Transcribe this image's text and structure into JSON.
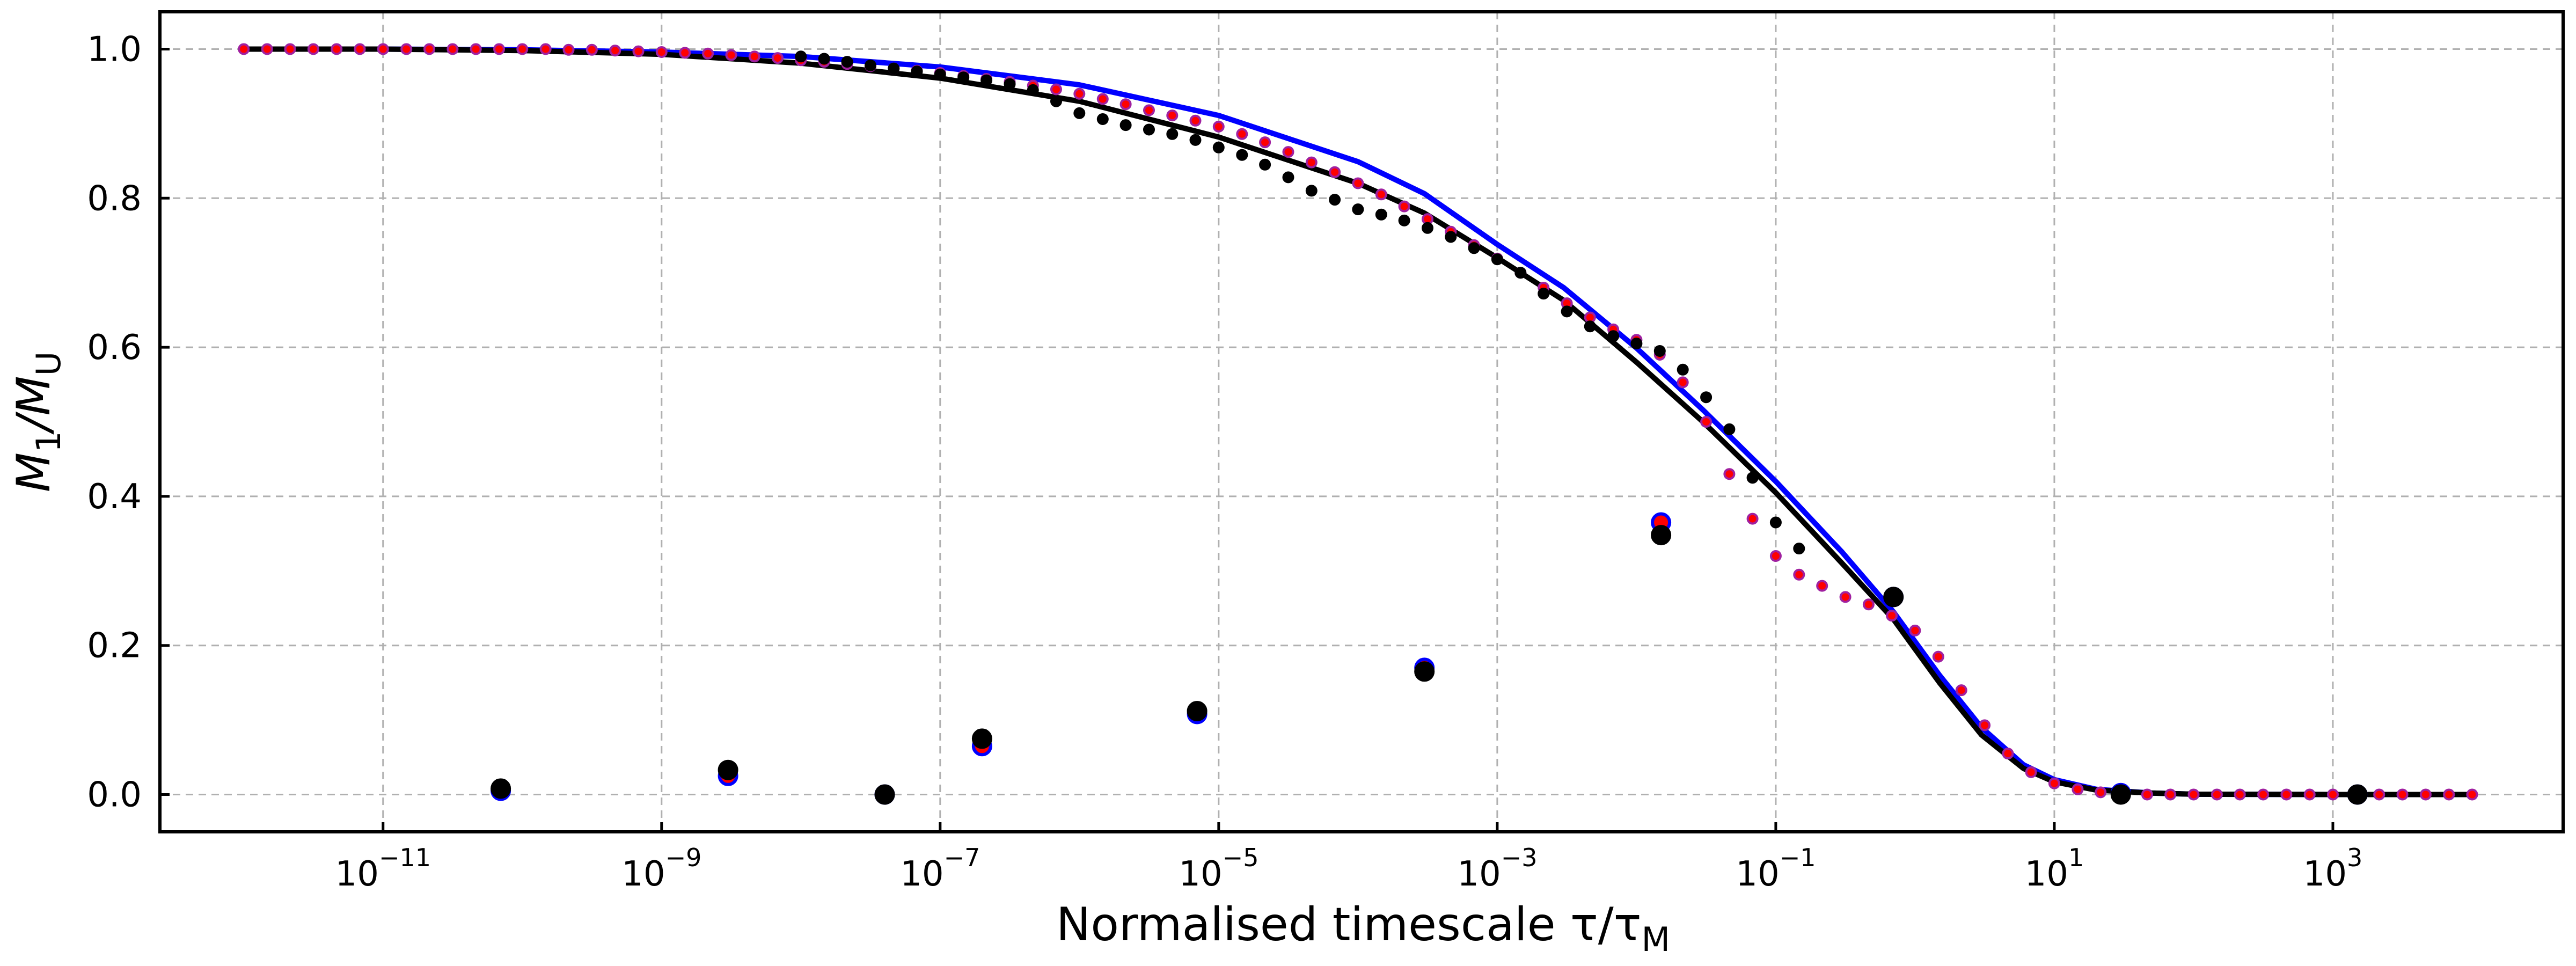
{
  "chart_data": {
    "type": "scatter",
    "title": "",
    "xlabel": "Normalised timescale τ/τ_M",
    "ylabel": "M_1/M_U",
    "x_scale": "log",
    "xlim": [
      2.5e-13,
      45000.0
    ],
    "ylim": [
      -0.05,
      1.05
    ],
    "grid": true,
    "x_ticks": [
      {
        "value": 1e-11,
        "base": "10",
        "exp": "−11"
      },
      {
        "value": 1e-09,
        "base": "10",
        "exp": "−9"
      },
      {
        "value": 1e-07,
        "base": "10",
        "exp": "−7"
      },
      {
        "value": 1e-05,
        "base": "10",
        "exp": "−5"
      },
      {
        "value": 0.001,
        "base": "10",
        "exp": "−3"
      },
      {
        "value": 0.1,
        "base": "10",
        "exp": "−1"
      },
      {
        "value": 10.0,
        "base": "10",
        "exp": "1"
      },
      {
        "value": 1000.0,
        "base": "10",
        "exp": "3"
      }
    ],
    "y_ticks": [
      {
        "value": 0.0,
        "label": "0.0"
      },
      {
        "value": 0.2,
        "label": "0.2"
      },
      {
        "value": 0.4,
        "label": "0.4"
      },
      {
        "value": 0.6,
        "label": "0.6"
      },
      {
        "value": 0.8,
        "label": "0.8"
      },
      {
        "value": 1.0,
        "label": "1.0"
      }
    ],
    "lines": [
      {
        "color": "#0000ff",
        "x": [
          1e-12,
          1e-11,
          1e-10,
          1e-09,
          1e-08,
          1e-07,
          1e-06,
          1e-05,
          0.0001,
          0.0003,
          0.001,
          0.003,
          0.01,
          0.03,
          0.1,
          0.3,
          0.7,
          1.5,
          3,
          6,
          10,
          20,
          50,
          100,
          1000,
          10000.0
        ],
        "y": [
          1.0,
          1.0,
          0.999,
          0.996,
          0.99,
          0.976,
          0.952,
          0.911,
          0.849,
          0.806,
          0.738,
          0.68,
          0.599,
          0.516,
          0.42,
          0.325,
          0.245,
          0.16,
          0.09,
          0.04,
          0.02,
          0.007,
          0.002,
          0.0005,
          0.0,
          0.0
        ]
      },
      {
        "color": "#000000",
        "x": [
          1e-12,
          1e-11,
          1e-10,
          1e-09,
          1e-08,
          1e-07,
          1e-06,
          1e-05,
          0.0001,
          0.0003,
          0.001,
          0.003,
          0.01,
          0.03,
          0.1,
          0.3,
          0.7,
          1.5,
          3,
          6,
          10,
          20,
          50,
          100,
          1000,
          10000.0
        ],
        "y": [
          1.0,
          1.0,
          0.998,
          0.993,
          0.981,
          0.961,
          0.93,
          0.882,
          0.82,
          0.78,
          0.72,
          0.663,
          0.58,
          0.5,
          0.405,
          0.31,
          0.235,
          0.15,
          0.08,
          0.035,
          0.017,
          0.006,
          0.002,
          0.0005,
          0.0,
          0.0
        ]
      }
    ],
    "series": [
      {
        "marker": "small",
        "fill": "#ff0000",
        "stroke": "#a020a0",
        "x": [
          1e-12,
          1.47e-12,
          2.15e-12,
          3.16e-12,
          4.64e-12,
          6.81e-12,
          1e-11,
          1.47e-11,
          2.15e-11,
          3.16e-11,
          4.64e-11,
          6.81e-11,
          1e-10,
          1.47e-10,
          2.15e-10,
          3.16e-10,
          4.64e-10,
          6.81e-10,
          1e-09,
          1.47e-09,
          2.15e-09,
          3.16e-09,
          4.64e-09,
          6.81e-09,
          1e-08,
          1.47e-08,
          2.15e-08,
          3.16e-08,
          4.64e-08,
          6.81e-08,
          1e-07,
          1.47e-07,
          2.15e-07,
          3.16e-07,
          4.64e-07,
          6.81e-07,
          1e-06,
          1.47e-06,
          2.15e-06,
          3.16e-06,
          4.64e-06,
          6.81e-06,
          1e-05,
          1.47e-05,
          2.15e-05,
          3.16e-05,
          4.64e-05,
          6.81e-05,
          0.0001,
          0.000147,
          0.000215,
          0.000316,
          0.000464,
          0.000681,
          0.001,
          0.00147,
          0.00215,
          0.00316,
          0.00464,
          0.00681,
          0.01,
          0.0147,
          0.0215,
          0.0316,
          0.0464,
          0.0681,
          0.1,
          0.147,
          0.215,
          0.316,
          0.464,
          0.681,
          1.0,
          1.47,
          2.15,
          3.16,
          4.64,
          6.81,
          10,
          14.7,
          21.5,
          31.6,
          46.4,
          68.1,
          100,
          147,
          215,
          316,
          464,
          681,
          1000,
          1470,
          2150,
          3160,
          4640,
          6810,
          10000
        ],
        "y": [
          1.0,
          1.0,
          1.0,
          1.0,
          1.0,
          1.0,
          1.0,
          1.0,
          1.0,
          1.0,
          1.0,
          1.0,
          1.0,
          1.0,
          0.999,
          0.999,
          0.998,
          0.997,
          0.996,
          0.995,
          0.994,
          0.992,
          0.99,
          0.988,
          0.985,
          0.983,
          0.98,
          0.977,
          0.974,
          0.971,
          0.968,
          0.964,
          0.96,
          0.956,
          0.951,
          0.946,
          0.94,
          0.933,
          0.926,
          0.918,
          0.911,
          0.904,
          0.896,
          0.886,
          0.875,
          0.862,
          0.848,
          0.835,
          0.82,
          0.805,
          0.789,
          0.772,
          0.755,
          0.737,
          0.719,
          0.7,
          0.68,
          0.659,
          0.64,
          0.624,
          0.61,
          0.59,
          0.553,
          0.5,
          0.43,
          0.37,
          0.32,
          0.295,
          0.28,
          0.265,
          0.255,
          0.24,
          0.22,
          0.185,
          0.14,
          0.093,
          0.055,
          0.03,
          0.015,
          0.007,
          0.003,
          0.001,
          0.0,
          0.0,
          0.0,
          0.0,
          0.0,
          0.0,
          0.0,
          0.0,
          0.0,
          0.0,
          0.0,
          0.0,
          0.0,
          0.0,
          0.0
        ]
      },
      {
        "marker": "small",
        "fill": "#000000",
        "stroke": "#000000",
        "x": [
          1e-08,
          1.47e-08,
          2.15e-08,
          3.16e-08,
          4.64e-08,
          6.81e-08,
          1e-07,
          1.47e-07,
          2.15e-07,
          3.16e-07,
          4.64e-07,
          6.81e-07,
          1e-06,
          1.47e-06,
          2.15e-06,
          3.16e-06,
          4.64e-06,
          6.81e-06,
          1e-05,
          1.47e-05,
          2.15e-05,
          3.16e-05,
          4.64e-05,
          6.81e-05,
          0.0001,
          0.000147,
          0.000215,
          0.000316,
          0.000464,
          0.000681,
          0.001,
          0.00147,
          0.00215,
          0.00316,
          0.00464,
          0.00681,
          0.01,
          0.0147,
          0.0215,
          0.0316,
          0.0464,
          0.0681,
          0.1,
          0.147
        ],
        "y": [
          0.99,
          0.987,
          0.983,
          0.978,
          0.974,
          0.97,
          0.966,
          0.962,
          0.958,
          0.953,
          0.945,
          0.93,
          0.914,
          0.906,
          0.898,
          0.892,
          0.886,
          0.878,
          0.868,
          0.858,
          0.845,
          0.828,
          0.81,
          0.798,
          0.785,
          0.778,
          0.77,
          0.76,
          0.748,
          0.733,
          0.718,
          0.7,
          0.672,
          0.648,
          0.628,
          0.615,
          0.605,
          0.595,
          0.57,
          0.533,
          0.49,
          0.425,
          0.365,
          0.33
        ]
      },
      {
        "marker": "large",
        "fill": "#ff0000",
        "stroke": "#0000ff",
        "x": [
          7e-11,
          3e-09,
          4e-08,
          2e-07,
          7e-06,
          0.0003,
          0.015,
          0.7,
          30,
          1500
        ],
        "y": [
          0.005,
          0.025,
          0.0,
          0.065,
          0.108,
          0.17,
          0.365,
          0.265,
          0.002,
          0.0
        ]
      },
      {
        "marker": "large",
        "fill": "#000000",
        "stroke": "#000000",
        "x": [
          7e-11,
          3e-09,
          4e-08,
          2e-07,
          7e-06,
          0.0003,
          0.015,
          0.7,
          30,
          1500
        ],
        "y": [
          0.008,
          0.033,
          0.0,
          0.075,
          0.112,
          0.165,
          0.348,
          0.265,
          0.0,
          0.0
        ]
      }
    ]
  }
}
